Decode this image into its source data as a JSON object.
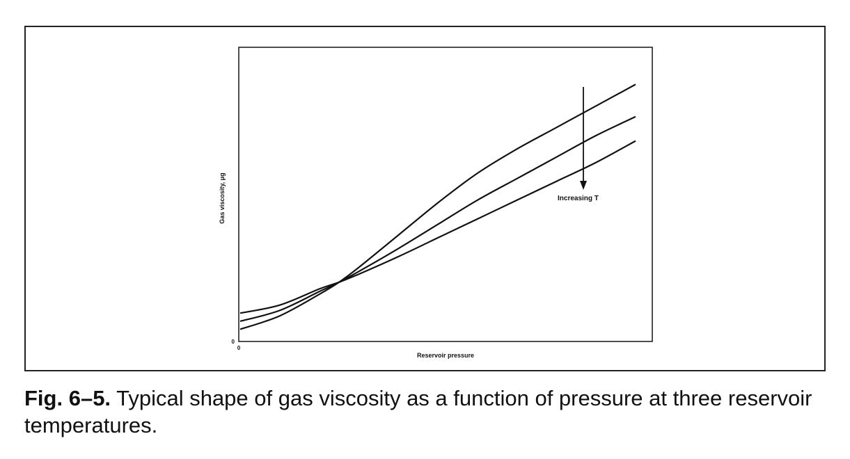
{
  "chart_data": {
    "type": "line",
    "xlabel": "Reservoir pressure",
    "ylabel": "Gas viscosity, μg",
    "x_origin_label": "0",
    "y_origin_label": "0",
    "xlim": [
      0,
      1
    ],
    "ylim": [
      0,
      1
    ],
    "grid": false,
    "annotation": {
      "text": "Increasing T",
      "arrow": "down",
      "at_x": 0.84
    },
    "series": [
      {
        "x": [
          0,
          0.1,
          0.2,
          0.25,
          0.3,
          0.4,
          0.5,
          0.6,
          0.7,
          0.8,
          0.9,
          1.0
        ],
        "values": [
          0.04,
          0.09,
          0.17,
          0.215,
          0.27,
          0.39,
          0.51,
          0.62,
          0.71,
          0.79,
          0.87,
          0.95
        ]
      },
      {
        "x": [
          0,
          0.1,
          0.2,
          0.25,
          0.3,
          0.4,
          0.5,
          0.6,
          0.7,
          0.8,
          0.9,
          1.0
        ],
        "values": [
          0.07,
          0.11,
          0.18,
          0.215,
          0.255,
          0.34,
          0.43,
          0.52,
          0.6,
          0.68,
          0.76,
          0.83
        ]
      },
      {
        "x": [
          0,
          0.1,
          0.2,
          0.25,
          0.3,
          0.4,
          0.5,
          0.6,
          0.7,
          0.8,
          0.9,
          1.0
        ],
        "values": [
          0.1,
          0.13,
          0.19,
          0.215,
          0.245,
          0.31,
          0.38,
          0.45,
          0.52,
          0.59,
          0.66,
          0.74
        ]
      }
    ]
  },
  "caption": {
    "label": "Fig. 6–5.",
    "text": " Typical shape of gas viscosity as a function of pressure at three reservoir temperatures."
  }
}
